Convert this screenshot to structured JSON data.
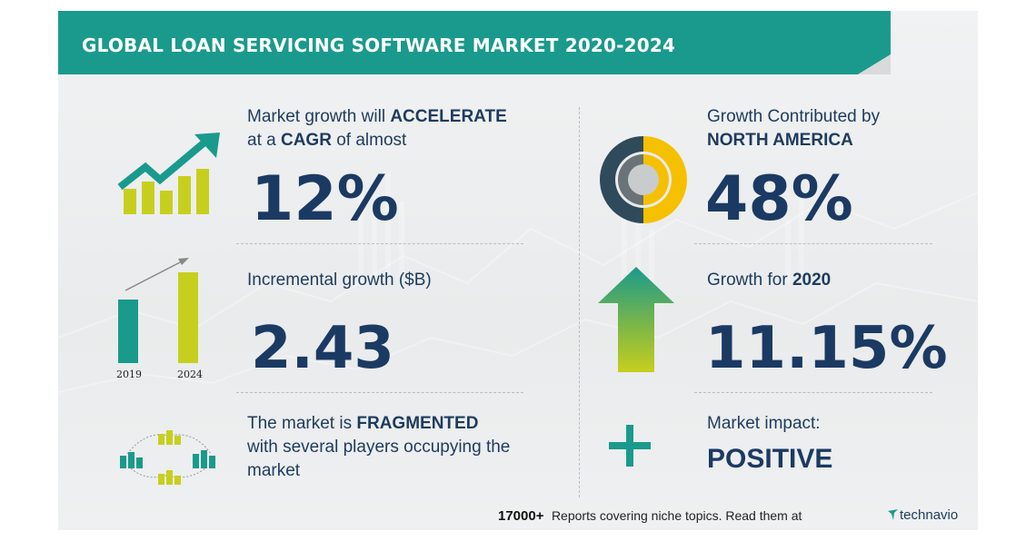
{
  "header": {
    "title": "GLOBAL LOAN SERVICING SOFTWARE MARKET 2020-2024"
  },
  "cagr": {
    "line1_pre": "Market growth will ",
    "line1_bold": "ACCELERATE",
    "line2_pre": "at a ",
    "line2_bold": "CAGR",
    "line2_post": " of almost",
    "value": "12%"
  },
  "incremental": {
    "label": "Incremental growth ($B)",
    "value": "2.43",
    "year_start": "2019",
    "year_end": "2024"
  },
  "vendor": {
    "line1_pre": "The market is ",
    "line1_bold": "FRAGMENTED",
    "line2": "with several players occupying the",
    "line3": "market"
  },
  "region": {
    "label": "Growth Contributed by",
    "region_name": "NORTH AMERICA",
    "value": "48%"
  },
  "yoy": {
    "label_pre": "Growth for ",
    "year": "2020",
    "value": "11.15%"
  },
  "impact": {
    "label": "Market impact:",
    "value": "POSITIVE"
  },
  "footer": {
    "count": "17000+",
    "text": "Reports covering niche topics. Read them at",
    "brand": "technavio"
  },
  "colors": {
    "teal": "#1a9a8c",
    "navy": "#1b3a63",
    "yellow": "#c7cf1e",
    "gold": "#f5c000",
    "green": "#7ab648"
  }
}
